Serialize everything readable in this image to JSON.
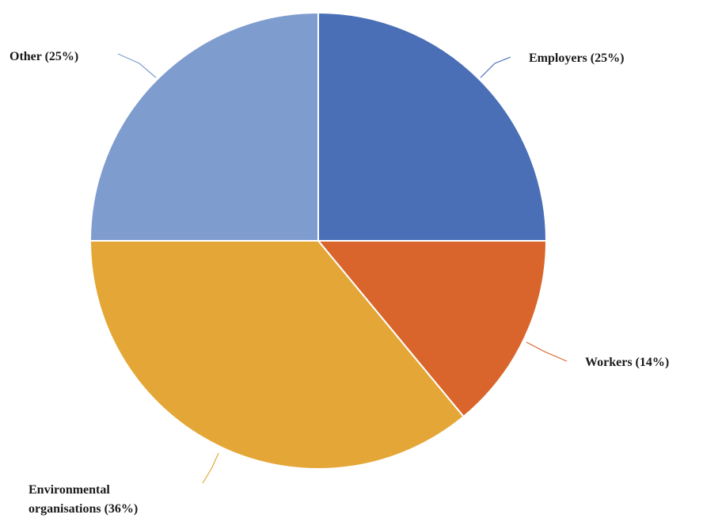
{
  "chart_data": {
    "type": "pie",
    "title": "",
    "slices": [
      {
        "label": "Employers (25%)",
        "lines": [
          "Employers (25%)"
        ],
        "value": 25,
        "color": "#4a6fb6"
      },
      {
        "label": "Workers (14%)",
        "lines": [
          "Workers (14%)"
        ],
        "value": 14,
        "color": "#d9652c"
      },
      {
        "label": "Environmental organisations (36%)",
        "lines": [
          "Environmental",
          "organisations (36%)"
        ],
        "value": 36,
        "color": "#e4a737"
      },
      {
        "label": "Other (25%)",
        "lines": [
          "Other (25%)"
        ],
        "value": 25,
        "color": "#7f9ccf"
      }
    ],
    "start_angle_deg": 0,
    "direction": "clockwise",
    "legend": "none",
    "data_labels": "outside-with-leader-lines"
  }
}
